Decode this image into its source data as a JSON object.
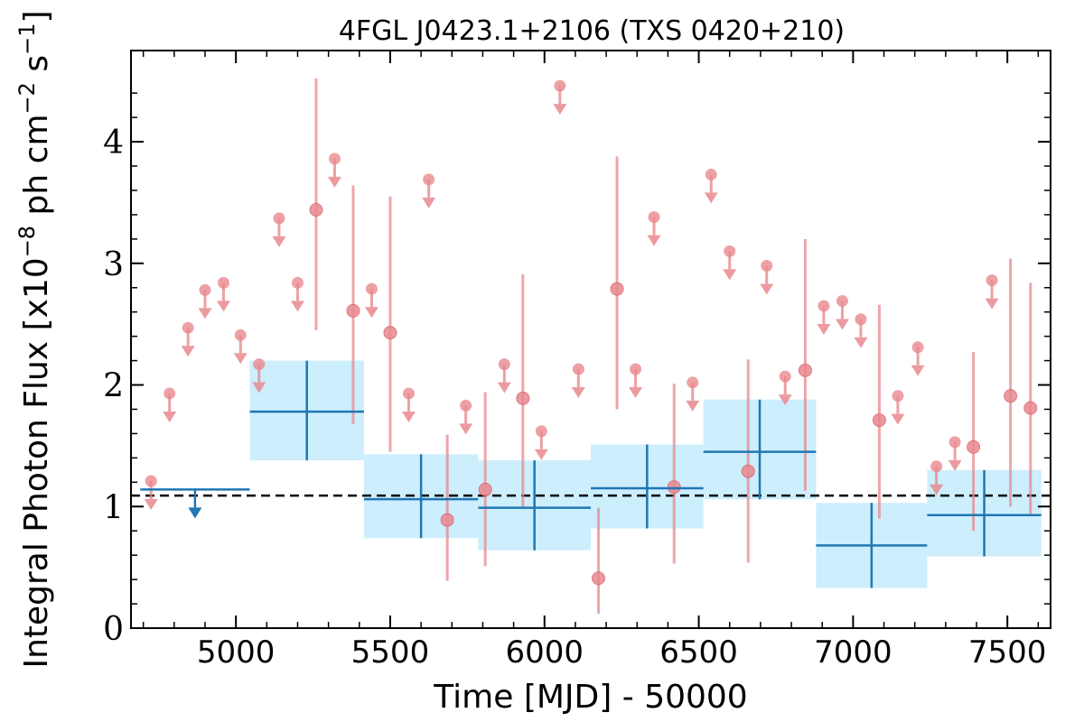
{
  "chart_data": {
    "type": "scatter",
    "title": "4FGL J0423.1+2106 (TXS 0420+210)",
    "xlabel": "Time [MJD] - 50000",
    "ylabel_main": "Integral Photon Flux [x10",
    "ylabel_exp1": "−8",
    "ylabel_mid": " ph cm",
    "ylabel_exp2": "−2",
    "ylabel_mid2": " s",
    "ylabel_exp3": "−1",
    "ylabel_end": "]",
    "xlim": [
      4660,
      7640
    ],
    "ylim": [
      0,
      4.75
    ],
    "x_ticks": [
      5000,
      5500,
      6000,
      6500,
      7000,
      7500
    ],
    "y_ticks": [
      0,
      1,
      2,
      3,
      4
    ],
    "mean_flux": 1.09,
    "colors": {
      "fine": "#e8898f",
      "coarse": "#1f77b4",
      "coarse_fill": "#cdeefc",
      "mean": "#000000"
    },
    "fine_bins_detections": [
      {
        "x": 5260,
        "y": 3.44,
        "lo": 2.45,
        "hi": 4.52
      },
      {
        "x": 5380,
        "y": 2.61,
        "lo": 1.68,
        "hi": 3.64
      },
      {
        "x": 5500,
        "y": 2.43,
        "lo": 1.45,
        "hi": 3.55
      },
      {
        "x": 5685,
        "y": 0.89,
        "lo": 0.39,
        "hi": 1.59
      },
      {
        "x": 5808,
        "y": 1.14,
        "lo": 0.51,
        "hi": 1.94
      },
      {
        "x": 5930,
        "y": 1.89,
        "lo": 1.0,
        "hi": 2.91
      },
      {
        "x": 6175,
        "y": 0.41,
        "lo": 0.12,
        "hi": 0.99
      },
      {
        "x": 6235,
        "y": 2.79,
        "lo": 1.8,
        "hi": 3.88
      },
      {
        "x": 6420,
        "y": 1.16,
        "lo": 0.53,
        "hi": 2.01
      },
      {
        "x": 6660,
        "y": 1.29,
        "lo": 0.54,
        "hi": 2.21
      },
      {
        "x": 6845,
        "y": 2.12,
        "lo": 1.13,
        "hi": 3.2
      },
      {
        "x": 7085,
        "y": 1.71,
        "lo": 0.9,
        "hi": 2.66
      },
      {
        "x": 7390,
        "y": 1.49,
        "lo": 0.8,
        "hi": 2.27
      },
      {
        "x": 7510,
        "y": 1.91,
        "lo": 1.0,
        "hi": 3.04
      },
      {
        "x": 7575,
        "y": 1.81,
        "lo": 0.93,
        "hi": 2.84
      }
    ],
    "fine_bins_upper_limits": [
      {
        "x": 4725,
        "y": 1.21
      },
      {
        "x": 4785,
        "y": 1.93
      },
      {
        "x": 4845,
        "y": 2.47
      },
      {
        "x": 4900,
        "y": 2.78
      },
      {
        "x": 4960,
        "y": 2.84
      },
      {
        "x": 5015,
        "y": 2.41
      },
      {
        "x": 5075,
        "y": 2.17
      },
      {
        "x": 5140,
        "y": 3.37
      },
      {
        "x": 5200,
        "y": 2.84
      },
      {
        "x": 5320,
        "y": 3.86
      },
      {
        "x": 5440,
        "y": 2.79
      },
      {
        "x": 5560,
        "y": 1.93
      },
      {
        "x": 5625,
        "y": 3.69
      },
      {
        "x": 5745,
        "y": 1.83
      },
      {
        "x": 5870,
        "y": 2.17
      },
      {
        "x": 5990,
        "y": 1.62
      },
      {
        "x": 6050,
        "y": 4.46
      },
      {
        "x": 6110,
        "y": 2.13
      },
      {
        "x": 6295,
        "y": 2.13
      },
      {
        "x": 6355,
        "y": 3.38
      },
      {
        "x": 6480,
        "y": 2.02
      },
      {
        "x": 6540,
        "y": 3.73
      },
      {
        "x": 6600,
        "y": 3.1
      },
      {
        "x": 6720,
        "y": 2.98
      },
      {
        "x": 6780,
        "y": 2.07
      },
      {
        "x": 6905,
        "y": 2.65
      },
      {
        "x": 6965,
        "y": 2.69
      },
      {
        "x": 7025,
        "y": 2.54
      },
      {
        "x": 7145,
        "y": 1.91
      },
      {
        "x": 7210,
        "y": 2.31
      },
      {
        "x": 7270,
        "y": 1.33
      },
      {
        "x": 7330,
        "y": 1.53
      },
      {
        "x": 7450,
        "y": 2.86
      }
    ],
    "coarse_bins": [
      {
        "x0": 5045,
        "x1": 5415,
        "y": 1.78,
        "lo": 1.38,
        "hi": 2.2
      },
      {
        "x0": 5415,
        "x1": 5785,
        "y": 1.06,
        "lo": 0.74,
        "hi": 1.43
      },
      {
        "x0": 5785,
        "x1": 6150,
        "y": 0.99,
        "lo": 0.64,
        "hi": 1.38
      },
      {
        "x0": 6150,
        "x1": 6515,
        "y": 1.15,
        "lo": 0.82,
        "hi": 1.51
      },
      {
        "x0": 6515,
        "x1": 6880,
        "y": 1.45,
        "lo": 1.06,
        "hi": 1.88
      },
      {
        "x0": 6880,
        "x1": 7240,
        "y": 0.68,
        "lo": 0.33,
        "hi": 1.03
      },
      {
        "x0": 7240,
        "x1": 7610,
        "y": 0.93,
        "lo": 0.59,
        "hi": 1.3
      }
    ],
    "coarse_upper_limits": [
      {
        "x0": 4690,
        "x1": 5045,
        "y": 1.14
      }
    ]
  }
}
